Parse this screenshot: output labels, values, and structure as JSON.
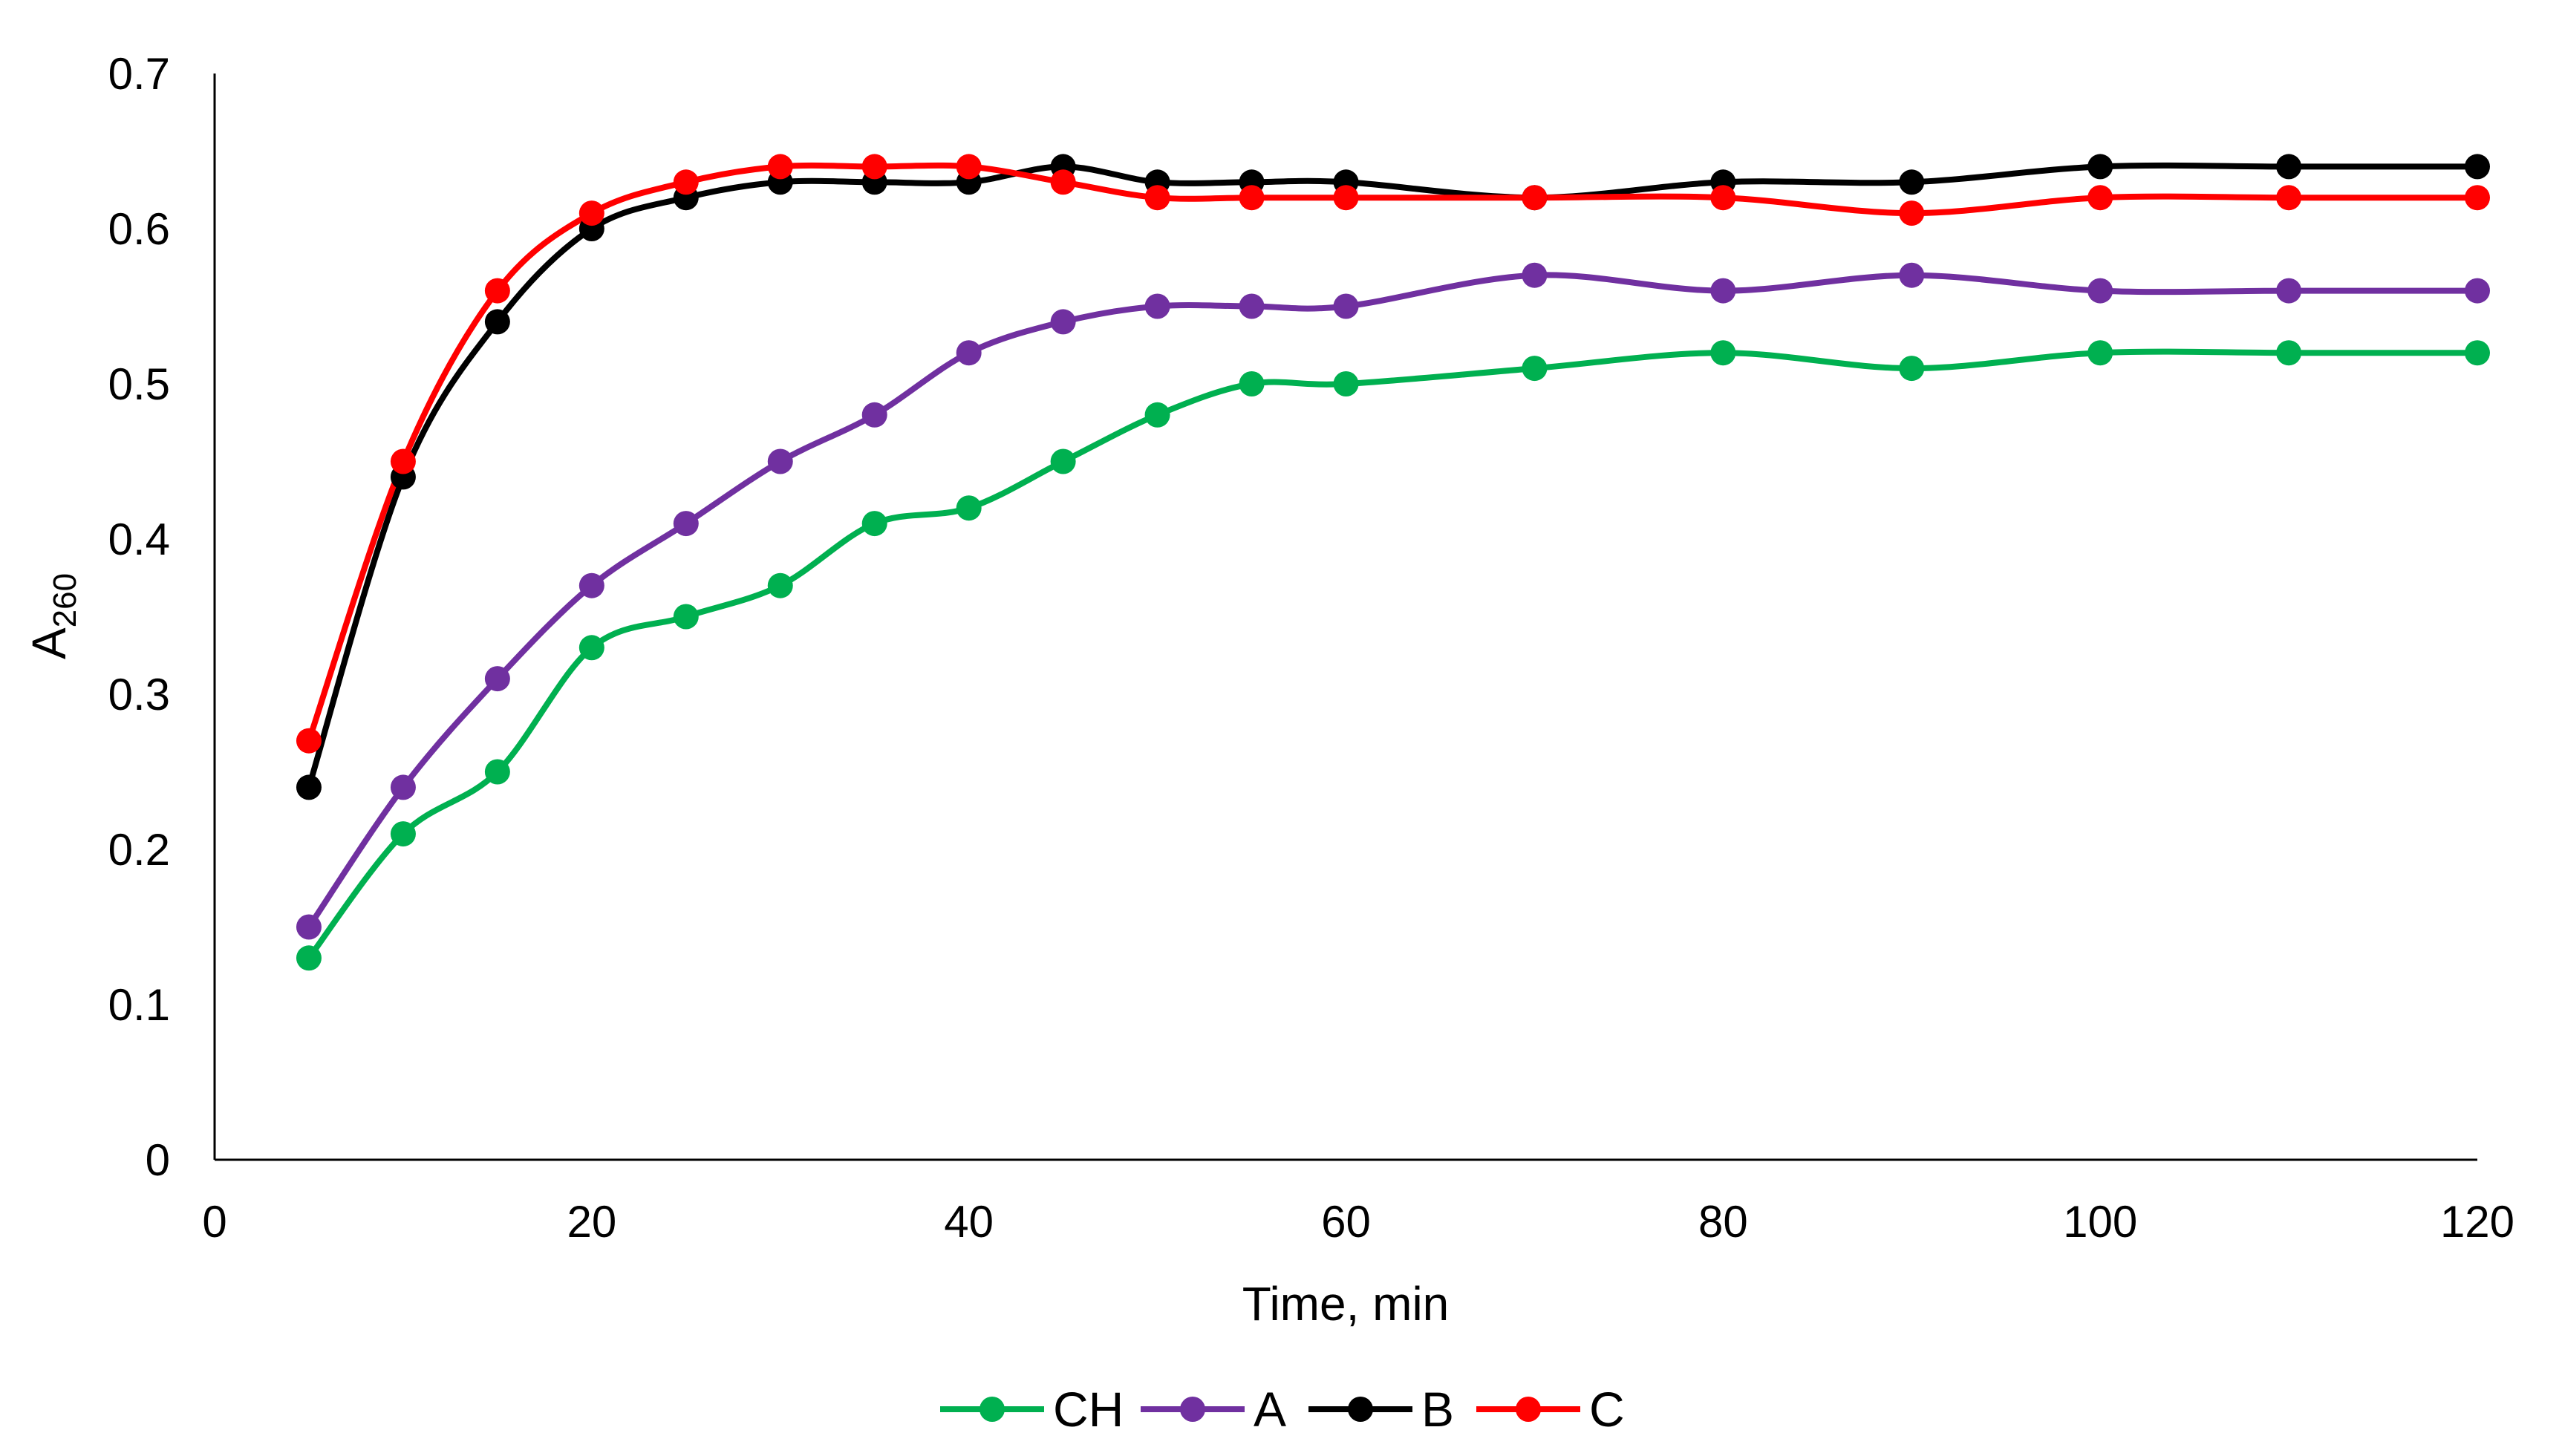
{
  "chart_data": {
    "type": "line",
    "title": "",
    "xlabel": "Time, min",
    "ylabel": {
      "main": "A",
      "sub": "260"
    },
    "xlim": [
      0,
      120
    ],
    "ylim": [
      0,
      0.7
    ],
    "xticks": [
      "0",
      "20",
      "40",
      "60",
      "80",
      "100",
      "120"
    ],
    "yticks": [
      "0",
      "0.1",
      "0.2",
      "0.3",
      "0.4",
      "0.5",
      "0.6",
      "0.7"
    ],
    "grid": false,
    "legend_position": "bottom",
    "x": [
      5,
      10,
      15,
      20,
      25,
      30,
      35,
      40,
      45,
      50,
      55,
      60,
      70,
      80,
      90,
      100,
      110,
      120
    ],
    "series": [
      {
        "name": "CH",
        "color": "#00b050",
        "values": [
          0.13,
          0.21,
          0.25,
          0.33,
          0.35,
          0.37,
          0.41,
          0.42,
          0.45,
          0.48,
          0.5,
          0.5,
          0.51,
          0.52,
          0.51,
          0.52,
          0.52,
          0.52
        ]
      },
      {
        "name": "A",
        "color": "#7030a0",
        "values": [
          0.15,
          0.24,
          0.31,
          0.37,
          0.41,
          0.45,
          0.48,
          0.52,
          0.54,
          0.55,
          0.55,
          0.55,
          0.57,
          0.56,
          0.57,
          0.56,
          0.56,
          0.56
        ]
      },
      {
        "name": "B",
        "color": "#000000",
        "values": [
          0.24,
          0.44,
          0.54,
          0.6,
          0.62,
          0.63,
          0.63,
          0.63,
          0.64,
          0.63,
          0.63,
          0.63,
          0.62,
          0.63,
          0.63,
          0.64,
          0.64,
          0.64
        ]
      },
      {
        "name": "C",
        "color": "#ff0000",
        "values": [
          0.27,
          0.45,
          0.56,
          0.61,
          0.63,
          0.64,
          0.64,
          0.64,
          0.63,
          0.62,
          0.62,
          0.62,
          0.62,
          0.62,
          0.61,
          0.62,
          0.62,
          0.62
        ]
      }
    ]
  }
}
